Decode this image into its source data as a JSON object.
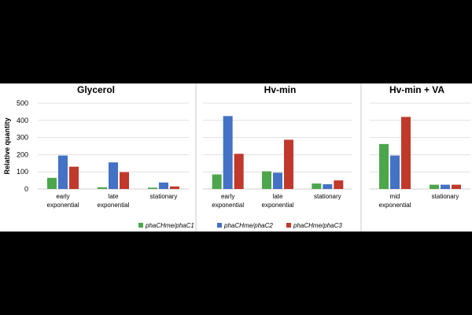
{
  "chart_data": {
    "type": "bar",
    "ylabel": "Relative quantity",
    "ylim": [
      0,
      500
    ],
    "yticks": [
      "0",
      "100",
      "200",
      "300",
      "400",
      "500"
    ],
    "grid": true,
    "legend_position": "bottom",
    "series_names": [
      "phaCHme/phaC1",
      "phaCHme/phaC2",
      "phaCHme/phaC3"
    ],
    "colors": [
      "#4ea64c",
      "#4472c4",
      "#c0392b"
    ],
    "panels": [
      {
        "title": "Glycerol",
        "categories": [
          [
            "early",
            "exponential"
          ],
          [
            "late",
            "exponential"
          ],
          [
            "stationary"
          ]
        ],
        "values": [
          [
            65,
            195,
            130
          ],
          [
            10,
            155,
            98
          ],
          [
            8,
            38,
            15
          ]
        ]
      },
      {
        "title": "Hv-min",
        "categories": [
          [
            "early",
            "exponential"
          ],
          [
            "late",
            "exponential"
          ],
          [
            "stationary"
          ]
        ],
        "values": [
          [
            85,
            425,
            205
          ],
          [
            103,
            95,
            287
          ],
          [
            32,
            28,
            50
          ]
        ]
      },
      {
        "title": "Hv-min + VA",
        "categories": [
          [
            "mid",
            "exponential"
          ],
          [
            "stationary"
          ]
        ],
        "values": [
          [
            262,
            195,
            420
          ],
          [
            25,
            25,
            25
          ]
        ]
      }
    ]
  }
}
